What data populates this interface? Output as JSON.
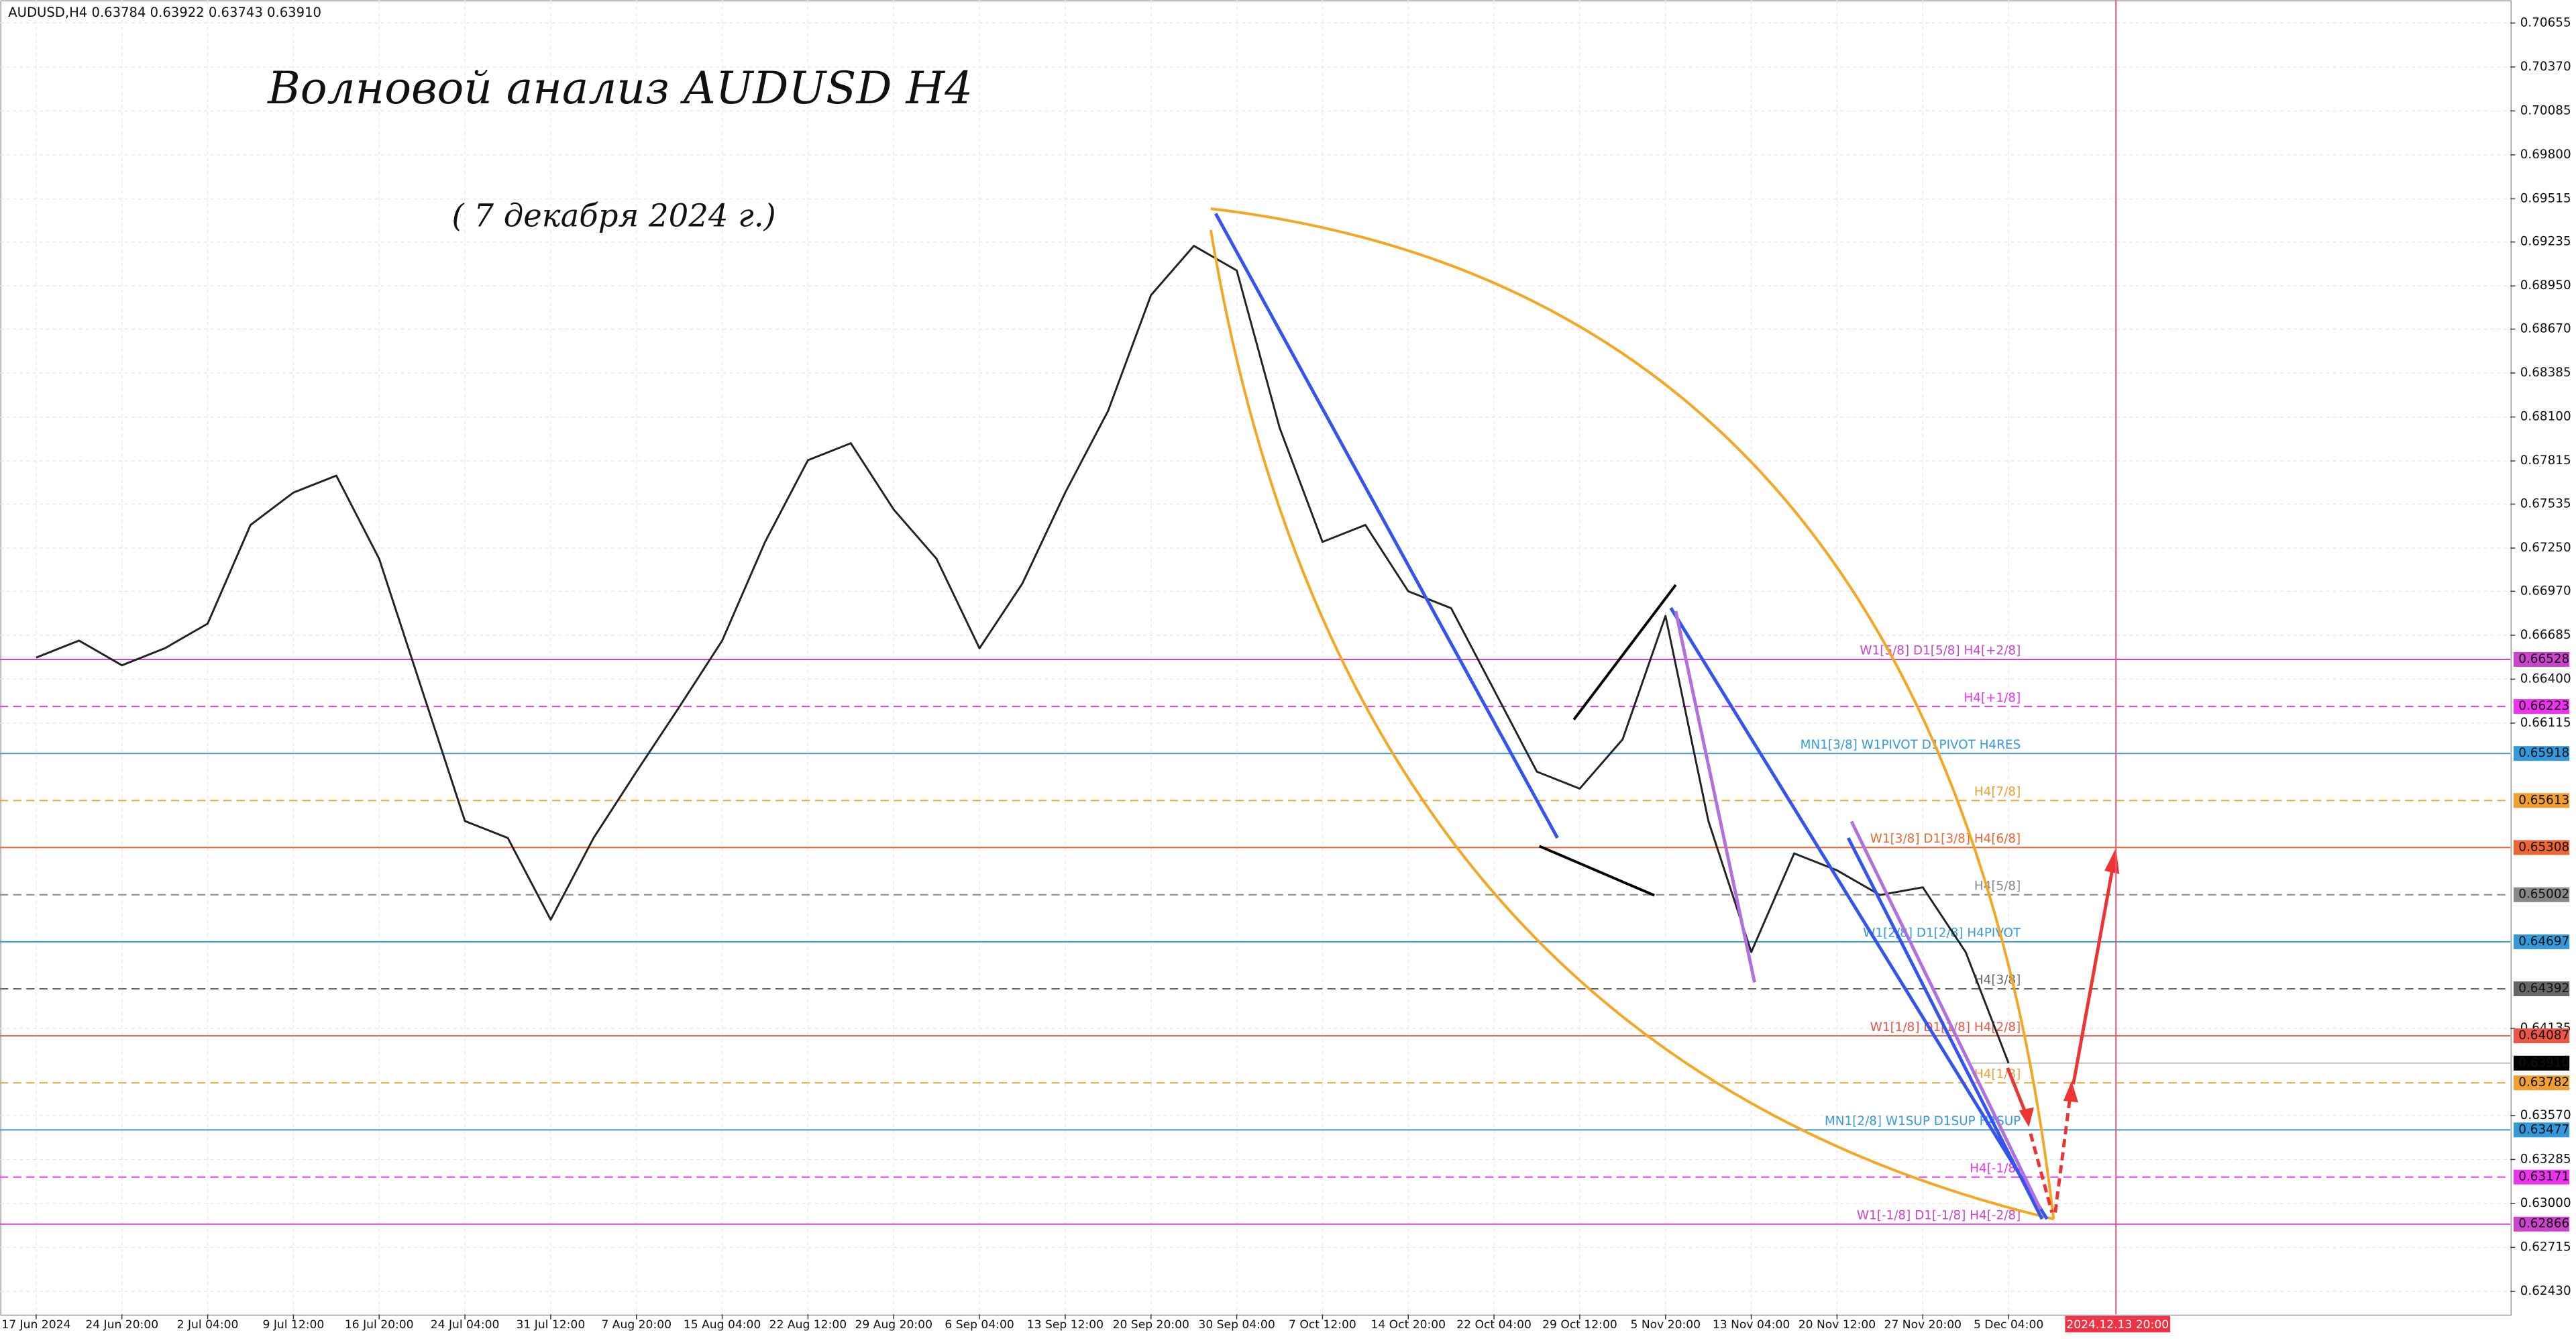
{
  "chart_data": {
    "type": "line",
    "header": "AUDUSD,H4  0.63784 0.63922 0.63743 0.63910",
    "title": "Волновой анализ AUDUSD H4",
    "subtitle": "( 7 декабря 2024 г.)",
    "categories": [
      "17 Jun 2024",
      null,
      "24 Jun 20:00",
      null,
      "2 Jul 04:00",
      null,
      "9 Jul 12:00",
      null,
      "16 Jul 20:00",
      null,
      "24 Jul 04:00",
      null,
      "31 Jul 12:00",
      null,
      "7 Aug 20:00",
      null,
      "15 Aug 04:00",
      null,
      "22 Aug 12:00",
      null,
      "29 Aug 20:00",
      null,
      "6 Sep 04:00",
      null,
      "13 Sep 12:00",
      null,
      "20 Sep 20:00",
      null,
      "30 Sep 04:00",
      null,
      "7 Oct 12:00",
      null,
      "14 Oct 20:00",
      null,
      "22 Oct 04:00",
      null,
      "29 Oct 12:00",
      null,
      "5 Nov 20:00",
      null,
      "13 Nov 04:00",
      null,
      "20 Nov 12:00",
      null,
      "27 Nov 20:00",
      null,
      "5 Dec 04:00"
    ],
    "series": [
      {
        "name": "AUDUSD,H4",
        "color": "#222222",
        "values": [
          0.6654,
          0.6665,
          0.6649,
          0.666,
          0.6676,
          0.674,
          0.6761,
          0.6772,
          0.6718,
          0.6633,
          0.6548,
          0.6537,
          0.6484,
          0.6537,
          0.658,
          0.6622,
          0.6665,
          0.6729,
          0.6782,
          0.6793,
          0.675,
          0.6718,
          0.666,
          0.6702,
          0.6761,
          0.6814,
          0.6889,
          0.6921,
          0.6905,
          0.6803,
          0.6729,
          0.674,
          0.6697,
          0.6686,
          0.6633,
          0.658,
          0.6569,
          0.6601,
          0.6681,
          0.6548,
          0.6463,
          0.6527,
          0.6516,
          0.65,
          0.6505,
          0.6463,
          0.6391
        ]
      }
    ],
    "ylim": [
      0.62281,
      0.70804
    ],
    "yticks": [
      {
        "value": 0.70655,
        "label": "0.70655"
      },
      {
        "value": 0.7037,
        "label": "0.70370"
      },
      {
        "value": 0.70085,
        "label": "0.70085"
      },
      {
        "value": 0.698,
        "label": "0.69800"
      },
      {
        "value": 0.69515,
        "label": "0.69515"
      },
      {
        "value": 0.69235,
        "label": "0.69235"
      },
      {
        "value": 0.6895,
        "label": "0.68950"
      },
      {
        "value": 0.6867,
        "label": "0.68670"
      },
      {
        "value": 0.68385,
        "label": "0.68385"
      },
      {
        "value": 0.681,
        "label": "0.68100"
      },
      {
        "value": 0.67815,
        "label": "0.67815"
      },
      {
        "value": 0.67535,
        "label": "0.67535"
      },
      {
        "value": 0.6725,
        "label": "0.67250"
      },
      {
        "value": 0.6697,
        "label": "0.66970"
      },
      {
        "value": 0.66685,
        "label": "0.66685"
      },
      {
        "value": 0.664,
        "label": "0.66400"
      },
      {
        "value": 0.66115,
        "label": "0.66115"
      },
      {
        "value": 0.64135,
        "label": "0.64135"
      },
      {
        "value": 0.6357,
        "label": "0.63570"
      },
      {
        "value": 0.63285,
        "label": "0.63285"
      },
      {
        "value": 0.63,
        "label": "0.63000"
      },
      {
        "value": 0.62715,
        "label": "0.62715"
      },
      {
        "value": 0.6243,
        "label": "0.62430"
      }
    ],
    "grid": true,
    "levels": [
      {
        "value": 0.66528,
        "label": "0.66528",
        "name": "W1[5/8] D1[5/8] H4[+2/8]",
        "color": "#cc44cc",
        "dashed": false
      },
      {
        "value": 0.66223,
        "label": "0.66223",
        "name": "H4[+1/8]",
        "color": "#ee33ee",
        "dashed": true
      },
      {
        "value": 0.65918,
        "label": "0.65918",
        "name": "MN1[3/8] W1PIVOT D1PIVOT H4RES",
        "color": "#3399dd",
        "dashed": false
      },
      {
        "value": 0.65613,
        "label": "0.65613",
        "name": "H4[7/8]",
        "color": "#f0a030",
        "dashed": true
      },
      {
        "value": 0.65308,
        "label": "0.65308",
        "name": "W1[3/8] D1[3/8] H4[6/8]",
        "color": "#ee6633",
        "dashed": false
      },
      {
        "value": 0.65002,
        "label": "0.65002",
        "name": "H4[5/8]",
        "color": "#888888",
        "dashed": true
      },
      {
        "value": 0.64697,
        "label": "0.64697",
        "name": "W1[2/8] D1[2/8] H4PIVOT",
        "color": "#3399dd",
        "dashed": false
      },
      {
        "value": 0.64392,
        "label": "0.64392",
        "name": "H4[3/8]",
        "color": "#666666",
        "dashed": true
      },
      {
        "value": 0.64087,
        "label": "0.64087",
        "name": "W1[1/8] D1[1/8] H4[2/8]",
        "color": "#ee5544",
        "dashed": false
      },
      {
        "value": 0.63782,
        "label": "0.63782",
        "name": "H4[1/8]",
        "color": "#f0a030",
        "dashed": true
      },
      {
        "value": 0.63477,
        "label": "0.63477",
        "name": "MN1[2/8] W1SUP D1SUP H4SUP",
        "color": "#3399dd",
        "dashed": false
      },
      {
        "value": 0.63171,
        "label": "0.63171",
        "name": "H4[-1/8]",
        "color": "#ee33ee",
        "dashed": true
      },
      {
        "value": 0.62866,
        "label": "0.62866",
        "name": "W1[-1/8] D1[-1/8] H4[-2/8]",
        "color": "#cc44cc",
        "dashed": false
      }
    ],
    "current_price": {
      "value": 0.6391,
      "label": "0.63910"
    },
    "forecast_time": "2024.12.13 20:00"
  }
}
